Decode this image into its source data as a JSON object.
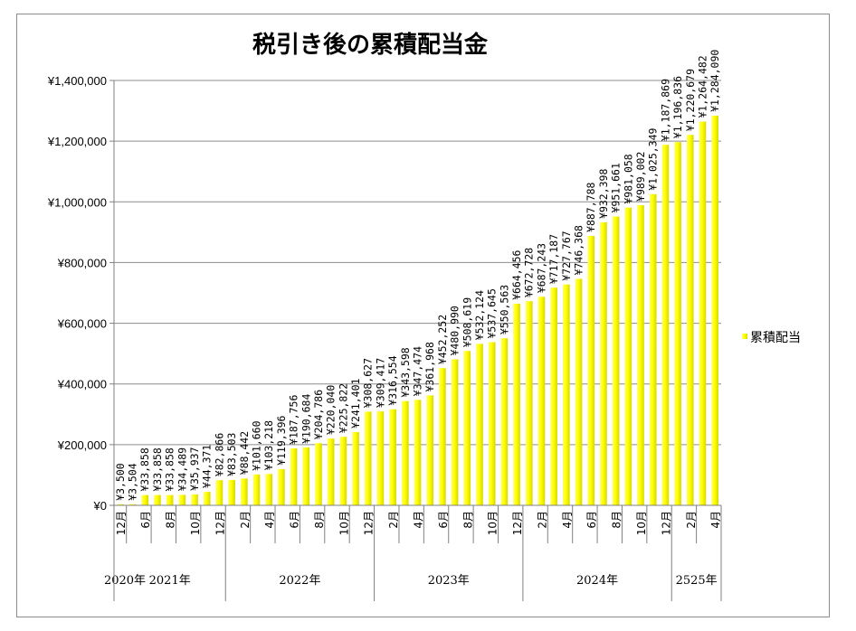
{
  "chart_data": {
    "type": "bar",
    "title": "税引き後の累積配当金",
    "legend": {
      "position": "right",
      "label": "累積配当"
    },
    "series": [
      {
        "name": "累積配当",
        "color": "#ffff00",
        "values": [
          3500,
          3504,
          33858,
          33858,
          33858,
          34489,
          35937,
          44371,
          82866,
          83503,
          88442,
          101660,
          103218,
          119396,
          187756,
          190684,
          204786,
          220040,
          225822,
          241401,
          308627,
          309417,
          316554,
          343598,
          347474,
          361968,
          452252,
          480990,
          508619,
          532124,
          537645,
          550563,
          664456,
          672728,
          687243,
          717187,
          727767,
          746368,
          887788,
          932398,
          951661,
          981058,
          989002,
          1025349,
          1187869,
          1196836,
          1220679,
          1264482,
          1284090
        ]
      }
    ],
    "data_labels": [
      "¥3,500",
      "¥3,504",
      "¥33,858",
      "¥33,858",
      "¥33,858",
      "¥34,489",
      "¥35,937",
      "¥44,371",
      "¥82,866",
      "¥83,503",
      "¥88,442",
      "¥101,660",
      "¥103,218",
      "¥119,396",
      "¥187,756",
      "¥190,684",
      "¥204,786",
      "¥220,040",
      "¥225,822",
      "¥241,401",
      "¥308,627",
      "¥309,417",
      "¥316,554",
      "¥343,598",
      "¥347,474",
      "¥361,968",
      "¥452,252",
      "¥480,990",
      "¥508,619",
      "¥532,124",
      "¥537,645",
      "¥550,563",
      "¥664,456",
      "¥672,728",
      "¥687,243",
      "¥717,187",
      "¥727,767",
      "¥746,368",
      "¥887,788",
      "¥932,398",
      "¥951,661",
      "¥981,058",
      "¥989,002",
      "¥1,025,349",
      "¥1,187,869",
      "¥1,196,836",
      "¥1,220,679",
      "¥1,264,482",
      "¥1,284,090"
    ],
    "month_labels": [
      {
        "index": 0,
        "text": "12月"
      },
      {
        "index": 2,
        "text": "6月"
      },
      {
        "index": 4,
        "text": "8月"
      },
      {
        "index": 6,
        "text": "10月"
      },
      {
        "index": 8,
        "text": "12月"
      },
      {
        "index": 10,
        "text": "2月"
      },
      {
        "index": 12,
        "text": "4月"
      },
      {
        "index": 14,
        "text": "6月"
      },
      {
        "index": 16,
        "text": "8月"
      },
      {
        "index": 18,
        "text": "10月"
      },
      {
        "index": 20,
        "text": "12月"
      },
      {
        "index": 22,
        "text": "2月"
      },
      {
        "index": 24,
        "text": "4月"
      },
      {
        "index": 26,
        "text": "6月"
      },
      {
        "index": 28,
        "text": "8月"
      },
      {
        "index": 30,
        "text": "10月"
      },
      {
        "index": 32,
        "text": "12月"
      },
      {
        "index": 34,
        "text": "2月"
      },
      {
        "index": 36,
        "text": "4月"
      },
      {
        "index": 38,
        "text": "6月"
      },
      {
        "index": 40,
        "text": "8月"
      },
      {
        "index": 42,
        "text": "10月"
      },
      {
        "index": 44,
        "text": "12月"
      },
      {
        "index": 46,
        "text": "2月"
      },
      {
        "index": 48,
        "text": "4月"
      }
    ],
    "year_groups": [
      {
        "label": "2020年",
        "start": 0,
        "end": 0
      },
      {
        "label": "2021年",
        "start": 1,
        "end": 8
      },
      {
        "label": "2022年",
        "start": 9,
        "end": 20
      },
      {
        "label": "2023年",
        "start": 21,
        "end": 32
      },
      {
        "label": "2024年",
        "start": 33,
        "end": 44
      },
      {
        "label": "2525年",
        "start": 45,
        "end": 48
      }
    ],
    "ylim": [
      0,
      1400000
    ],
    "yticks": [
      0,
      200000,
      400000,
      600000,
      800000,
      1000000,
      1200000,
      1400000
    ],
    "ytick_labels": [
      "¥0",
      "¥200,000",
      "¥400,000",
      "¥600,000",
      "¥800,000",
      "¥1,000,000",
      "¥1,200,000",
      "¥1,400,000"
    ],
    "grid": true
  }
}
